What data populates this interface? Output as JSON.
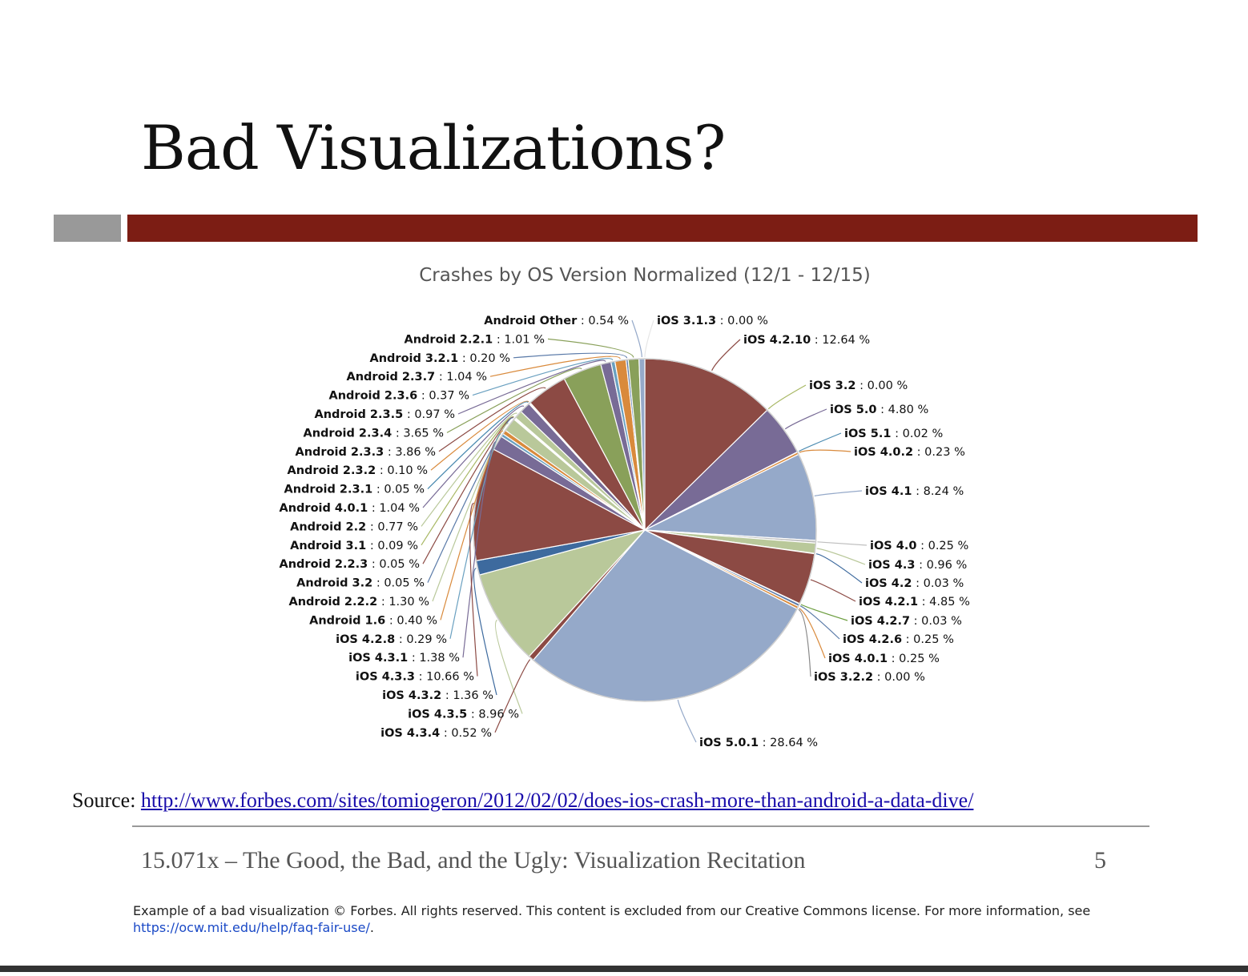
{
  "slide": {
    "title": "Bad Visualizations?",
    "source_prefix": "Source: ",
    "source_url": "http://www.forbes.com/sites/tomiogeron/2012/02/02/does-ios-crash-more-than-android-a-data-dive/",
    "footer": "15.071x – The Good, the Bad, and the Ugly: Visualization Recitation",
    "page_number": "5",
    "notice_text": "Example of a bad visualization © Forbes. All rights reserved. This content is excluded from our Creative Commons license. For more information, see ",
    "notice_link": "https://ocw.mit.edu/help/faq-fair-use/",
    "notice_end": "."
  },
  "colors": {
    "accent_bar": "#7c1d14",
    "gray_bar": "#999999"
  },
  "chart_data": {
    "type": "pie",
    "title": "Crashes by OS Version Normalized (12/1 - 12/15)",
    "value_suffix": " %",
    "slices": [
      {
        "name": "iOS 3.1.3",
        "value": 0.0,
        "color": "#e6e6e6"
      },
      {
        "name": "iOS 4.2.10",
        "value": 12.64,
        "color": "#8c4a44"
      },
      {
        "name": "iOS 3.2",
        "value": 0.0,
        "color": "#a8b864"
      },
      {
        "name": "iOS 5.0",
        "value": 4.8,
        "color": "#786b96"
      },
      {
        "name": "iOS 5.1",
        "value": 0.02,
        "color": "#4a8ab0"
      },
      {
        "name": "iOS 4.0.2",
        "value": 0.23,
        "color": "#d98a3c"
      },
      {
        "name": "iOS 4.1",
        "value": 8.24,
        "color": "#95a9c9"
      },
      {
        "name": "iOS 4.0",
        "value": 0.25,
        "color": "#bfbfbf"
      },
      {
        "name": "iOS 4.3",
        "value": 0.96,
        "color": "#b9c89a"
      },
      {
        "name": "iOS 4.2",
        "value": 0.03,
        "color": "#3d6a9e"
      },
      {
        "name": "iOS 4.2.1",
        "value": 4.85,
        "color": "#8c4a44"
      },
      {
        "name": "iOS 4.2.7",
        "value": 0.03,
        "color": "#6a9c3c"
      },
      {
        "name": "iOS 4.2.6",
        "value": 0.25,
        "color": "#5a7aa8"
      },
      {
        "name": "iOS 4.0.1",
        "value": 0.25,
        "color": "#d98a3c"
      },
      {
        "name": "iOS 3.2.2",
        "value": 0.0,
        "color": "#888888"
      },
      {
        "name": "iOS 5.0.1",
        "value": 28.64,
        "color": "#95a9c9"
      },
      {
        "name": "iOS 4.3.4",
        "value": 0.52,
        "color": "#8c4a44"
      },
      {
        "name": "iOS 4.3.5",
        "value": 8.96,
        "color": "#b9c89a"
      },
      {
        "name": "iOS 4.3.2",
        "value": 1.36,
        "color": "#3d6a9e"
      },
      {
        "name": "iOS 4.3.3",
        "value": 10.66,
        "color": "#8c4a44"
      },
      {
        "name": "iOS 4.3.1",
        "value": 1.38,
        "color": "#786b96"
      },
      {
        "name": "iOS 4.2.8",
        "value": 0.29,
        "color": "#6aa0c0"
      },
      {
        "name": "Android 1.6",
        "value": 0.4,
        "color": "#d98a3c"
      },
      {
        "name": "Android 2.2.2",
        "value": 1.3,
        "color": "#b9c89a"
      },
      {
        "name": "Android 3.2",
        "value": 0.05,
        "color": "#5a7aa8"
      },
      {
        "name": "Android 2.2.3",
        "value": 0.05,
        "color": "#8c4a44"
      },
      {
        "name": "Android 3.1",
        "value": 0.09,
        "color": "#a8b864"
      },
      {
        "name": "Android 2.2",
        "value": 0.77,
        "color": "#b9c89a"
      },
      {
        "name": "Android 4.0.1",
        "value": 1.04,
        "color": "#786b96"
      },
      {
        "name": "Android 2.3.1",
        "value": 0.05,
        "color": "#4a8ab0"
      },
      {
        "name": "Android 2.3.2",
        "value": 0.1,
        "color": "#d98a3c"
      },
      {
        "name": "Android 2.3.3",
        "value": 3.86,
        "color": "#8c4a44"
      },
      {
        "name": "Android 2.3.4",
        "value": 3.65,
        "color": "#89a05a"
      },
      {
        "name": "Android 2.3.5",
        "value": 0.97,
        "color": "#786b96"
      },
      {
        "name": "Android 2.3.6",
        "value": 0.37,
        "color": "#6aa0c0"
      },
      {
        "name": "Android 2.3.7",
        "value": 1.04,
        "color": "#d98a3c"
      },
      {
        "name": "Android 3.2.1",
        "value": 0.2,
        "color": "#5a7aa8"
      },
      {
        "name": "Android 2.2.1",
        "value": 1.01,
        "color": "#89a05a"
      },
      {
        "name": "Android Other",
        "value": 0.54,
        "color": "#95a9c9"
      }
    ],
    "left_labels": [
      "Android Other",
      "Android 2.2.1",
      "Android 3.2.1",
      "Android 2.3.7",
      "Android 2.3.6",
      "Android 2.3.5",
      "Android 2.3.4",
      "Android 2.3.3",
      "Android 2.3.2",
      "Android 2.3.1",
      "Android 4.0.1",
      "Android 2.2",
      "Android 3.1",
      "Android 2.2.3",
      "Android 3.2",
      "Android 2.2.2",
      "Android 1.6",
      "iOS 4.2.8",
      "iOS 4.3.1",
      "iOS 4.3.3",
      "iOS 4.3.2",
      "iOS 4.3.5",
      "iOS 4.3.4"
    ],
    "right_labels": [
      "iOS 3.1.3",
      "iOS 4.2.10",
      "iOS 3.2",
      "iOS 5.0",
      "iOS 5.1",
      "iOS 4.0.2",
      "iOS 4.1",
      "iOS 4.0",
      "iOS 4.3",
      "iOS 4.2",
      "iOS 4.2.1",
      "iOS 4.2.7",
      "iOS 4.2.6",
      "iOS 4.0.1",
      "iOS 3.2.2"
    ],
    "bottom_labels": [
      "iOS 5.0.1"
    ],
    "legend": "none"
  }
}
